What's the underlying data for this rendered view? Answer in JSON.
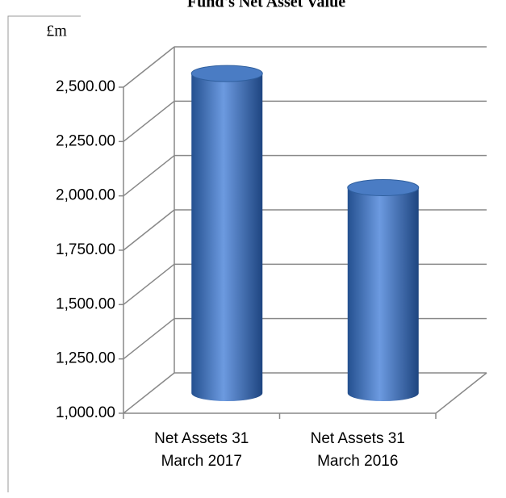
{
  "chart_data": {
    "type": "bar3d",
    "title": "Fund's Net Asset Value",
    "y_label": "£m",
    "categories": [
      "Net Assets 31 March 2017",
      "Net Assets 31 March 2016"
    ],
    "values": [
      2470,
      1945
    ],
    "color": "#4a7cc4",
    "ylim": [
      1000,
      2500
    ],
    "yticks": [
      {
        "value": 1000,
        "label": "1,000.00"
      },
      {
        "value": 1250,
        "label": "1,250.00"
      },
      {
        "value": 1500,
        "label": "1,500.00"
      },
      {
        "value": 1750,
        "label": "1,750.00"
      },
      {
        "value": 2000,
        "label": "2,000.00"
      },
      {
        "value": 2250,
        "label": "2,250.00"
      },
      {
        "value": 2500,
        "label": "2,500.00"
      }
    ],
    "grid": true
  }
}
